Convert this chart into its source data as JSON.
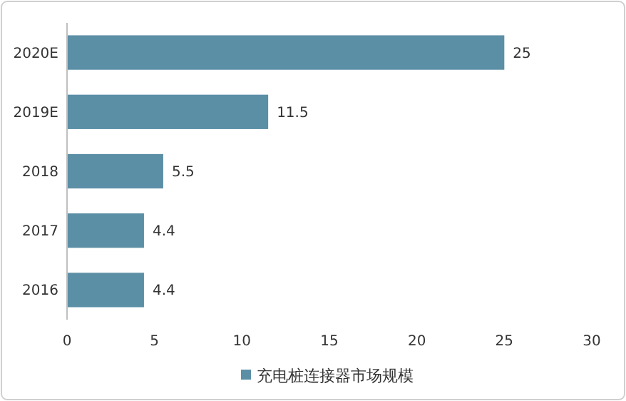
{
  "chart_data": {
    "type": "bar",
    "orientation": "horizontal",
    "categories": [
      "2020E",
      "2019E",
      "2018",
      "2017",
      "2016"
    ],
    "series": [
      {
        "name": "充电桩连接器市场规模",
        "color": "#5b8fa6",
        "values": [
          25,
          11.5,
          5.5,
          4.4,
          4.4
        ]
      }
    ],
    "xlim": [
      0,
      30
    ],
    "xticks": [
      0,
      5,
      10,
      15,
      20,
      25,
      30
    ],
    "data_labels": true,
    "legend": "bottom",
    "grid": false
  }
}
